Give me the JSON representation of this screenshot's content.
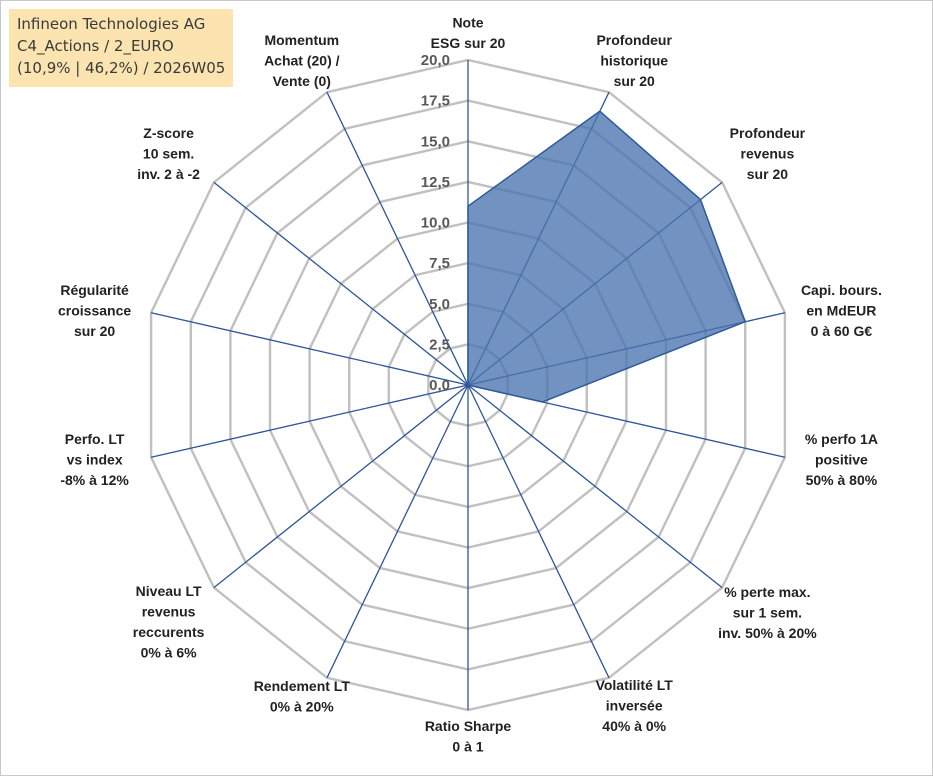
{
  "info": {
    "company": "Infineon Technologies AG",
    "line2": "C4_Actions / 2_EURO",
    "line3": "(10,9% | 46,2%) / 2026W05"
  },
  "chart_data": {
    "type": "radar",
    "title": "",
    "rmax": 20,
    "rings": [
      0,
      2.5,
      5,
      7.5,
      10,
      12.5,
      15,
      17.5,
      20
    ],
    "tick_labels": [
      "0,0",
      "2,5",
      "5,0",
      "7,5",
      "10,0",
      "12,5",
      "15,0",
      "17,5",
      "20,0"
    ],
    "grid": true,
    "axes": [
      {
        "label": [
          "Note",
          "ESG sur 20"
        ],
        "value": 11
      },
      {
        "label": [
          "Profondeur",
          "historique",
          "sur 20"
        ],
        "value": 18.7
      },
      {
        "label": [
          "Profondeur",
          "revenus",
          "sur 20"
        ],
        "value": 18.3
      },
      {
        "label": [
          "Capi. bours.",
          "en MdEUR",
          "0 à 60 G€"
        ],
        "value": 17.5
      },
      {
        "label": [
          "% perfo 1A",
          "positive",
          "50% à 80%"
        ],
        "value": 4.7
      },
      {
        "label": [
          "% perte max.",
          "sur 1 sem.",
          "inv. 50% à 20%"
        ],
        "value": 0
      },
      {
        "label": [
          "Volatilité LT",
          "inversée",
          "40% à 0%"
        ],
        "value": 0
      },
      {
        "label": [
          "Ratio Sharpe",
          "0 à 1"
        ],
        "value": 0
      },
      {
        "label": [
          "Rendement LT",
          "0% à 20%"
        ],
        "value": 0
      },
      {
        "label": [
          "Niveau LT",
          "revenus",
          "reccurents",
          "0% à 6%"
        ],
        "value": 0
      },
      {
        "label": [
          "Perfo. LT",
          "vs index",
          "-8% à 12%"
        ],
        "value": 0
      },
      {
        "label": [
          "Régularité",
          "croissance",
          "sur 20"
        ],
        "value": 0
      },
      {
        "label": [
          "Z-score",
          "10 sem.",
          "inv. 2 à -2"
        ],
        "value": 0
      },
      {
        "label": [
          "Momentum",
          "Achat (20) /",
          "Vente (0)"
        ],
        "value": 0
      }
    ],
    "colors": {
      "fill": "#4a74b0",
      "stroke": "#2e5b96",
      "spoke": "#2f5597",
      "ring": "#c0c0c0"
    }
  }
}
